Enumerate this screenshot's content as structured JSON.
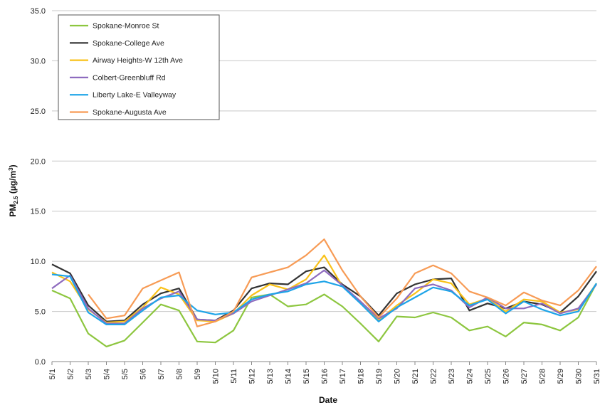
{
  "chart_data": {
    "type": "line",
    "xlabel": "Date",
    "ylabel_main": "PM",
    "ylabel_sub": "2.5",
    "ylabel_unit": " (µg/m",
    "ylabel_sup": "3",
    "ylabel_close": ")",
    "ylim": [
      0,
      35
    ],
    "yticks": [
      "0.0",
      "5.0",
      "10.0",
      "15.0",
      "20.0",
      "25.0",
      "30.0",
      "35.0"
    ],
    "grid": true,
    "legend_position": "top-left",
    "categories": [
      "5/1",
      "5/2",
      "5/3",
      "5/4",
      "5/5",
      "5/6",
      "5/7",
      "5/8",
      "5/9",
      "5/10",
      "5/11",
      "5/12",
      "5/13",
      "5/14",
      "5/15",
      "5/16",
      "5/17",
      "5/18",
      "5/19",
      "5/20",
      "5/21",
      "5/22",
      "5/23",
      "5/24",
      "5/25",
      "5/26",
      "5/27",
      "5/28",
      "5/29",
      "5/30",
      "5/31"
    ],
    "series": [
      {
        "name": "Spokane-Monroe St",
        "color": "#8dc63f",
        "values": [
          7.1,
          6.3,
          2.8,
          1.5,
          2.1,
          3.9,
          5.7,
          5.1,
          2.0,
          1.9,
          3.1,
          6.4,
          6.7,
          5.5,
          5.7,
          6.7,
          5.5,
          3.8,
          2.0,
          4.5,
          4.4,
          4.9,
          4.4,
          3.1,
          3.5,
          2.5,
          3.9,
          3.7,
          3.1,
          4.4,
          7.8
        ]
      },
      {
        "name": "Spokane-College Ave",
        "color": "#333333",
        "values": [
          9.7,
          8.8,
          5.6,
          4.0,
          4.1,
          5.7,
          6.8,
          7.3,
          4.2,
          4.1,
          5.1,
          7.3,
          7.8,
          7.7,
          9.0,
          9.4,
          7.7,
          6.5,
          4.6,
          6.8,
          7.7,
          8.2,
          8.3,
          5.1,
          5.8,
          5.3,
          6.0,
          5.7,
          4.9,
          6.5,
          9.0
        ]
      },
      {
        "name": "Airway Heights-W 12th Ave",
        "color": "#f9c21a",
        "values": [
          8.9,
          8.0,
          5.2,
          3.9,
          4.0,
          5.4,
          7.4,
          6.7,
          4.1,
          4.0,
          4.8,
          6.6,
          7.7,
          7.2,
          8.2,
          10.6,
          7.5,
          6.0,
          4.1,
          5.6,
          6.8,
          8.2,
          7.8,
          5.7,
          6.3,
          5.0,
          6.2,
          6.0,
          4.9,
          5.2,
          7.8
        ]
      },
      {
        "name": "Colbert-Greenbluff Rd",
        "color": "#8e6bbf",
        "values": [
          7.3,
          8.6,
          5.3,
          3.8,
          3.8,
          5.3,
          6.3,
          7.0,
          4.2,
          4.1,
          4.8,
          6.0,
          6.6,
          7.2,
          7.8,
          9.1,
          7.6,
          6.0,
          4.3,
          5.3,
          7.3,
          7.7,
          7.1,
          5.4,
          6.4,
          5.3,
          5.3,
          5.8,
          4.8,
          5.3,
          7.7
        ]
      },
      {
        "name": "Liberty Lake-E Valleyway",
        "color": "#1ea4e8",
        "values": [
          8.7,
          8.5,
          4.9,
          3.7,
          3.7,
          5.1,
          6.4,
          6.6,
          5.1,
          4.7,
          4.9,
          6.2,
          6.7,
          7.0,
          7.7,
          8.0,
          7.5,
          5.8,
          4.0,
          5.4,
          6.4,
          7.4,
          7.0,
          5.6,
          6.2,
          4.8,
          6.0,
          5.2,
          4.6,
          5.0,
          7.8
        ]
      },
      {
        "name": "Spokane-Augusta Ave",
        "color": "#f79b55",
        "values": [
          null,
          null,
          6.7,
          4.3,
          4.6,
          7.3,
          8.1,
          8.9,
          3.5,
          4.0,
          5.0,
          8.4,
          8.9,
          9.4,
          10.6,
          12.2,
          9.1,
          6.5,
          4.4,
          6.3,
          8.8,
          9.6,
          8.8,
          7.0,
          6.4,
          5.6,
          6.9,
          6.1,
          5.6,
          7.1,
          9.5
        ]
      }
    ]
  }
}
